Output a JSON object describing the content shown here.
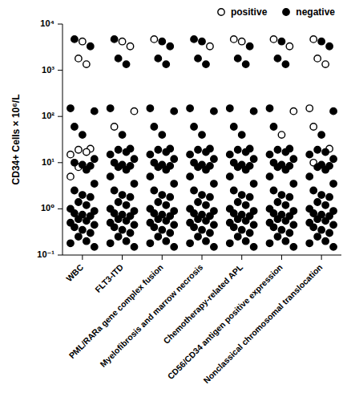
{
  "chart_data": {
    "type": "scatter",
    "y_label": "CD34+ Cells × 10⁶/L",
    "log": "y",
    "grid": false,
    "legend": "top right",
    "categories": [
      "WBC",
      "FLT3-ITD",
      "PML/RARa gene complex fusion",
      "Myelofibrosis and marrow necrosis",
      "Chemotherapy-related APL",
      "CD56/CD34 antigen positive expression",
      "Nonclassical chromosomal translocation"
    ],
    "ylim": [
      0.1,
      10000
    ],
    "yticks": [
      {
        "value": 0.1,
        "label": "10⁻¹"
      },
      {
        "value": 1,
        "label": "10⁰"
      },
      {
        "value": 10,
        "label": "10¹"
      },
      {
        "value": 100,
        "label": "10²"
      },
      {
        "value": 1000,
        "label": "10³"
      },
      {
        "value": 10000,
        "label": "10⁴"
      }
    ],
    "series": [
      {
        "name": "positive",
        "color": "#000000",
        "marker": "open_circle",
        "values": [
          [
            4200,
            1800,
            1350,
            20,
            19,
            17,
            15,
            8,
            5
          ],
          [
            4200,
            3300,
            130,
            60
          ],
          [
            4700
          ],
          [
            3300
          ],
          [
            4200,
            4700
          ],
          [
            4700,
            3300,
            130,
            40
          ],
          [
            4700,
            1800,
            1350,
            150,
            60,
            20,
            10
          ]
        ]
      },
      {
        "name": "negative",
        "color": "#000000",
        "marker": "filled_circle",
        "values": [
          [
            4700,
            3300,
            150,
            130,
            60,
            40,
            12,
            10,
            9,
            8.5,
            7,
            3.5,
            2.5,
            2,
            1.8,
            1.4,
            1.2,
            1,
            0.9,
            0.8,
            0.75,
            0.7,
            0.6,
            0.55,
            0.5,
            0.45,
            0.4,
            0.35,
            0.3,
            0.25,
            0.2,
            0.18,
            0.15
          ],
          [
            4700,
            1800,
            1350,
            150,
            40,
            20,
            19,
            17,
            15,
            12,
            10,
            9,
            8.5,
            8,
            7,
            5,
            3.5,
            2.5,
            2,
            1.8,
            1.4,
            1.2,
            1,
            0.9,
            0.8,
            0.75,
            0.7,
            0.6,
            0.55,
            0.5,
            0.45,
            0.4,
            0.35,
            0.3,
            0.25,
            0.2,
            0.18,
            0.15
          ],
          [
            4200,
            3300,
            1800,
            1350,
            150,
            130,
            60,
            40,
            20,
            19,
            17,
            15,
            12,
            10,
            9,
            8.5,
            8,
            7,
            5,
            3.5,
            2.5,
            2,
            1.8,
            1.4,
            1.2,
            1,
            0.9,
            0.8,
            0.75,
            0.7,
            0.6,
            0.55,
            0.5,
            0.45,
            0.4,
            0.35,
            0.3,
            0.25,
            0.2,
            0.18,
            0.15
          ],
          [
            4700,
            4200,
            1800,
            1350,
            150,
            130,
            60,
            40,
            20,
            19,
            17,
            15,
            12,
            10,
            9,
            8.5,
            8,
            7,
            5,
            3.5,
            2.5,
            2,
            1.8,
            1.4,
            1.2,
            1,
            0.9,
            0.8,
            0.75,
            0.7,
            0.6,
            0.55,
            0.5,
            0.45,
            0.4,
            0.35,
            0.3,
            0.25,
            0.2,
            0.18,
            0.15
          ],
          [
            3300,
            1800,
            1350,
            150,
            130,
            60,
            40,
            20,
            19,
            17,
            15,
            12,
            10,
            9,
            8.5,
            8,
            7,
            5,
            3.5,
            2.5,
            2,
            1.8,
            1.4,
            1.2,
            1,
            0.9,
            0.8,
            0.75,
            0.7,
            0.6,
            0.55,
            0.5,
            0.45,
            0.4,
            0.35,
            0.3,
            0.25,
            0.2,
            0.18,
            0.15
          ],
          [
            4200,
            1800,
            1350,
            150,
            60,
            20,
            19,
            17,
            15,
            12,
            10,
            9,
            8.5,
            8,
            7,
            5,
            3.5,
            2.5,
            2,
            1.8,
            1.4,
            1.2,
            1,
            0.9,
            0.8,
            0.75,
            0.7,
            0.6,
            0.55,
            0.5,
            0.45,
            0.4,
            0.35,
            0.3,
            0.25,
            0.2,
            0.18,
            0.15
          ],
          [
            4200,
            3300,
            130,
            40,
            19,
            17,
            15,
            12,
            9,
            8.5,
            8,
            7,
            5,
            3.5,
            2.5,
            2,
            1.8,
            1.4,
            1.2,
            1,
            0.9,
            0.8,
            0.75,
            0.7,
            0.6,
            0.55,
            0.5,
            0.45,
            0.4,
            0.35,
            0.3,
            0.25,
            0.2,
            0.18,
            0.15
          ]
        ]
      }
    ]
  }
}
